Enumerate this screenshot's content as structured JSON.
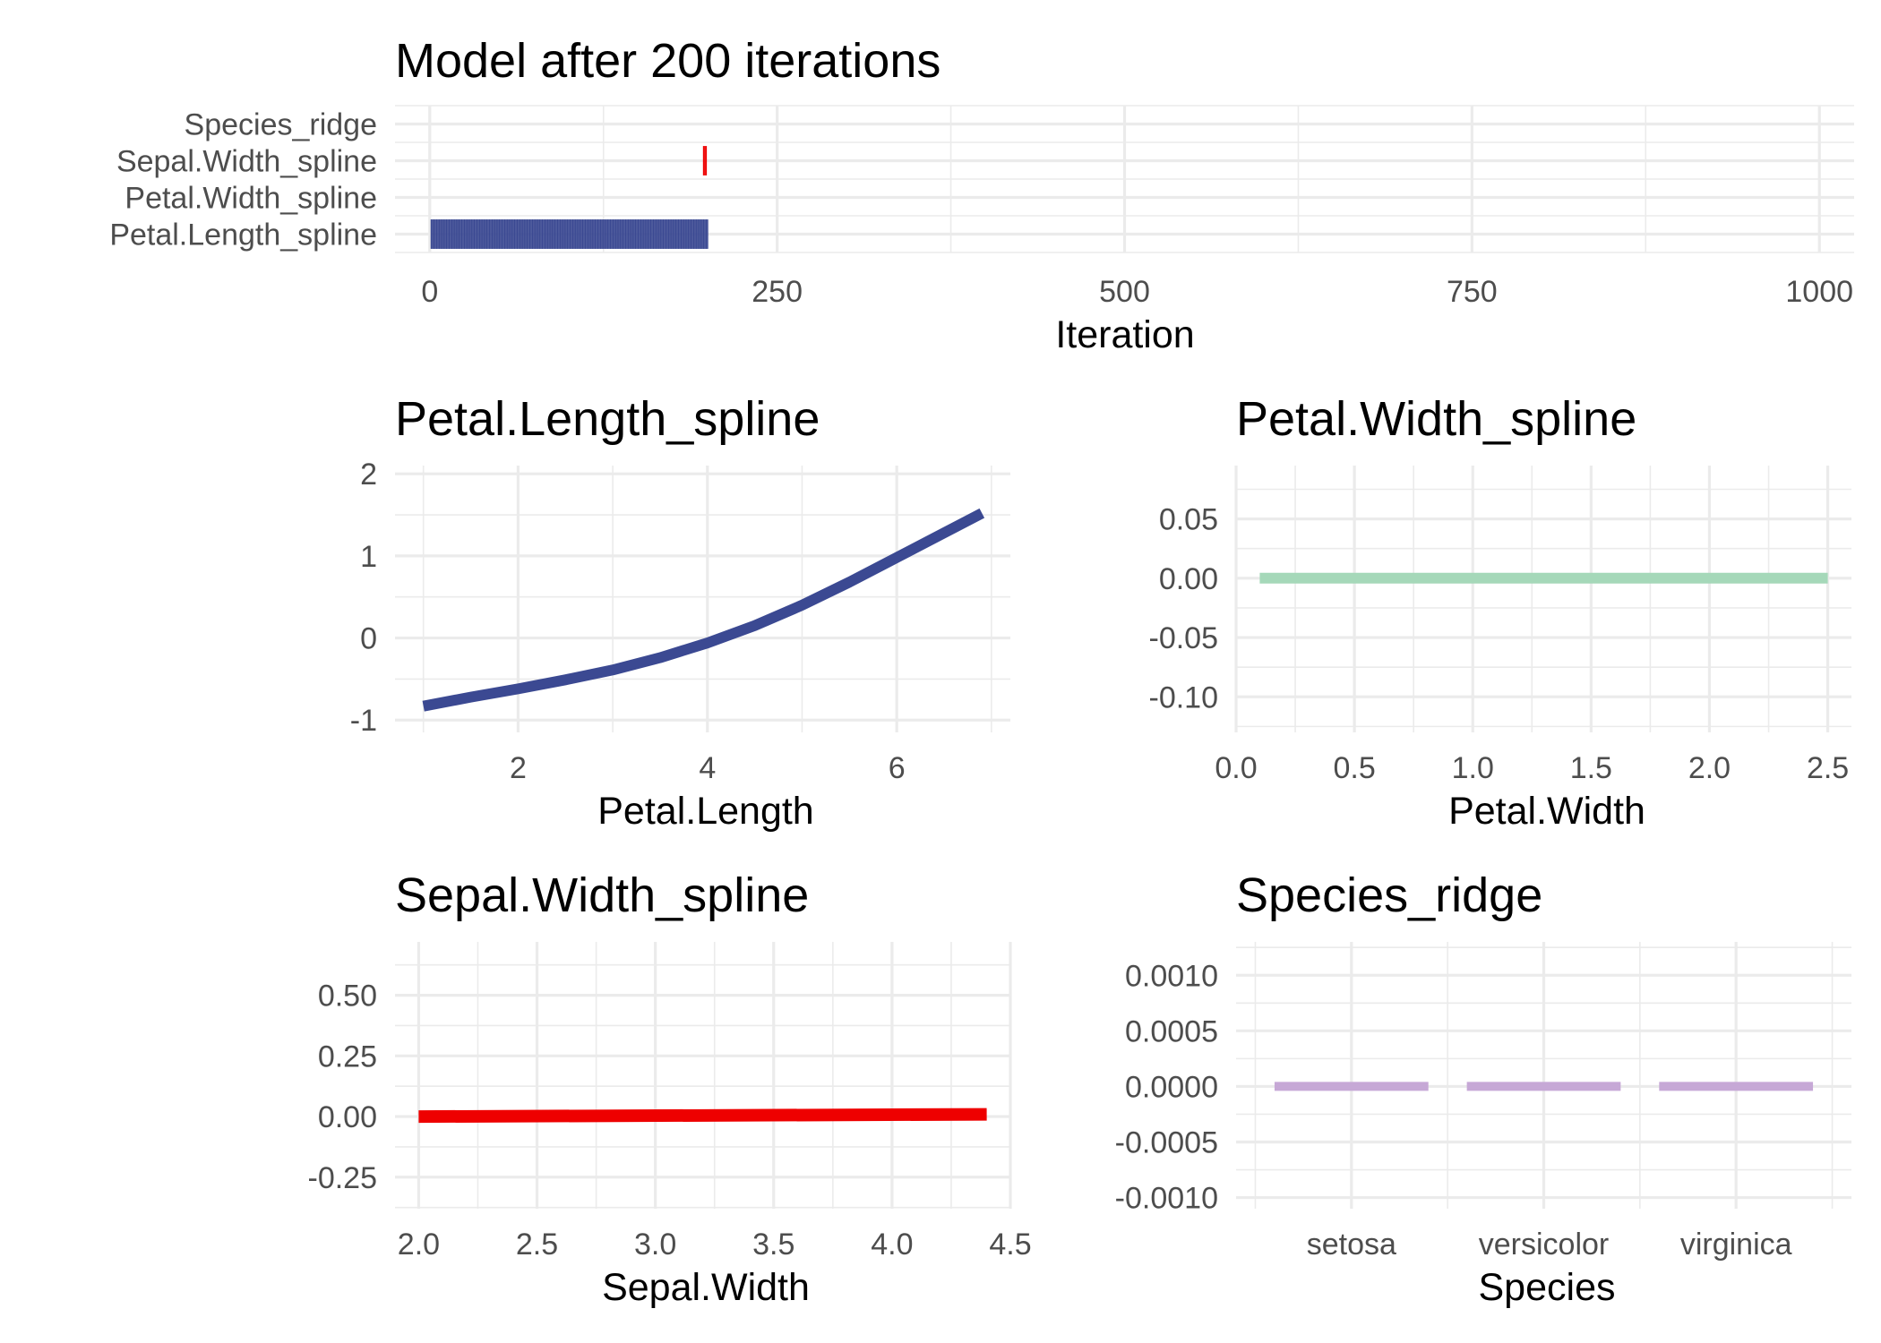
{
  "chart_data": [
    {
      "id": "iterations",
      "type": "bar",
      "title": "Model after 200 iterations",
      "xlabel": "Iteration",
      "ylabel": "",
      "xlim": [
        -25,
        1025
      ],
      "xticks": [
        0,
        250,
        500,
        750,
        1000
      ],
      "categories": [
        "Petal.Length_spline",
        "Petal.Width_spline",
        "Sepal.Width_spline",
        "Species_ridge"
      ],
      "selections": [
        {
          "category": "Petal.Length_spline",
          "from": 1,
          "to": 200,
          "color": "#3b4992"
        },
        {
          "category": "Sepal.Width_spline",
          "from": 197,
          "to": 199,
          "color": "#ee0000"
        }
      ],
      "grid": true
    },
    {
      "id": "petal-length",
      "type": "line",
      "title": "Petal.Length_spline",
      "xlabel": "Petal.Length",
      "ylabel": "",
      "xlim": [
        0.7,
        7.2
      ],
      "ylim": [
        -1.15,
        2.1
      ],
      "xticks": [
        2,
        4,
        6
      ],
      "yticks": [
        -1,
        0,
        1,
        2
      ],
      "color": "#3b4992",
      "x": [
        1.0,
        1.5,
        2.0,
        2.5,
        3.0,
        3.5,
        4.0,
        4.5,
        5.0,
        5.5,
        6.0,
        6.5,
        6.9
      ],
      "y": [
        -0.83,
        -0.72,
        -0.62,
        -0.51,
        -0.39,
        -0.24,
        -0.06,
        0.15,
        0.4,
        0.68,
        0.98,
        1.28,
        1.52
      ],
      "grid": true
    },
    {
      "id": "petal-width",
      "type": "line",
      "title": "Petal.Width_spline",
      "xlabel": "Petal.Width",
      "ylabel": "",
      "xlim": [
        0.0,
        2.6
      ],
      "ylim": [
        -0.13,
        0.095
      ],
      "xticks": [
        0.0,
        0.5,
        1.0,
        1.5,
        2.0,
        2.5
      ],
      "xtick_labels": [
        "0.0",
        "0.5",
        "1.0",
        "1.5",
        "2.0",
        "2.5"
      ],
      "yticks": [
        -0.1,
        -0.05,
        0.0,
        0.05
      ],
      "ytick_labels": [
        "-0.10",
        "-0.05",
        "0.00",
        "0.05"
      ],
      "color": "#a5d8b9",
      "x": [
        0.1,
        2.5
      ],
      "y": [
        0.0,
        0.0
      ],
      "grid": true
    },
    {
      "id": "sepal-width",
      "type": "line",
      "title": "Sepal.Width_spline",
      "xlabel": "Sepal.Width",
      "ylabel": "",
      "xlim": [
        1.9,
        4.5
      ],
      "ylim": [
        -0.38,
        0.72
      ],
      "xticks": [
        2.0,
        2.5,
        3.0,
        3.5,
        4.0,
        4.5
      ],
      "xtick_labels": [
        "2.0",
        "2.5",
        "3.0",
        "3.5",
        "4.0",
        "4.5"
      ],
      "yticks": [
        -0.25,
        0.0,
        0.25,
        0.5
      ],
      "ytick_labels": [
        "-0.25",
        "0.00",
        "0.25",
        "0.50"
      ],
      "color": "#ee0000",
      "x": [
        2.0,
        4.4
      ],
      "y": [
        0.0,
        0.009
      ],
      "grid": true
    },
    {
      "id": "species",
      "type": "bar",
      "title": "Species_ridge",
      "xlabel": "Species",
      "ylabel": "",
      "categories": [
        "setosa",
        "versicolor",
        "virginica"
      ],
      "values": [
        0.0,
        0.0,
        0.0
      ],
      "ylim": [
        -0.0011,
        0.0013
      ],
      "yticks": [
        -0.001,
        -0.0005,
        0.0,
        0.0005,
        0.001
      ],
      "ytick_labels": [
        "-0.0010",
        "-0.0005",
        "0.0000",
        "0.0005",
        "0.0010"
      ],
      "color": "#c6a8d6",
      "grid": true
    }
  ]
}
